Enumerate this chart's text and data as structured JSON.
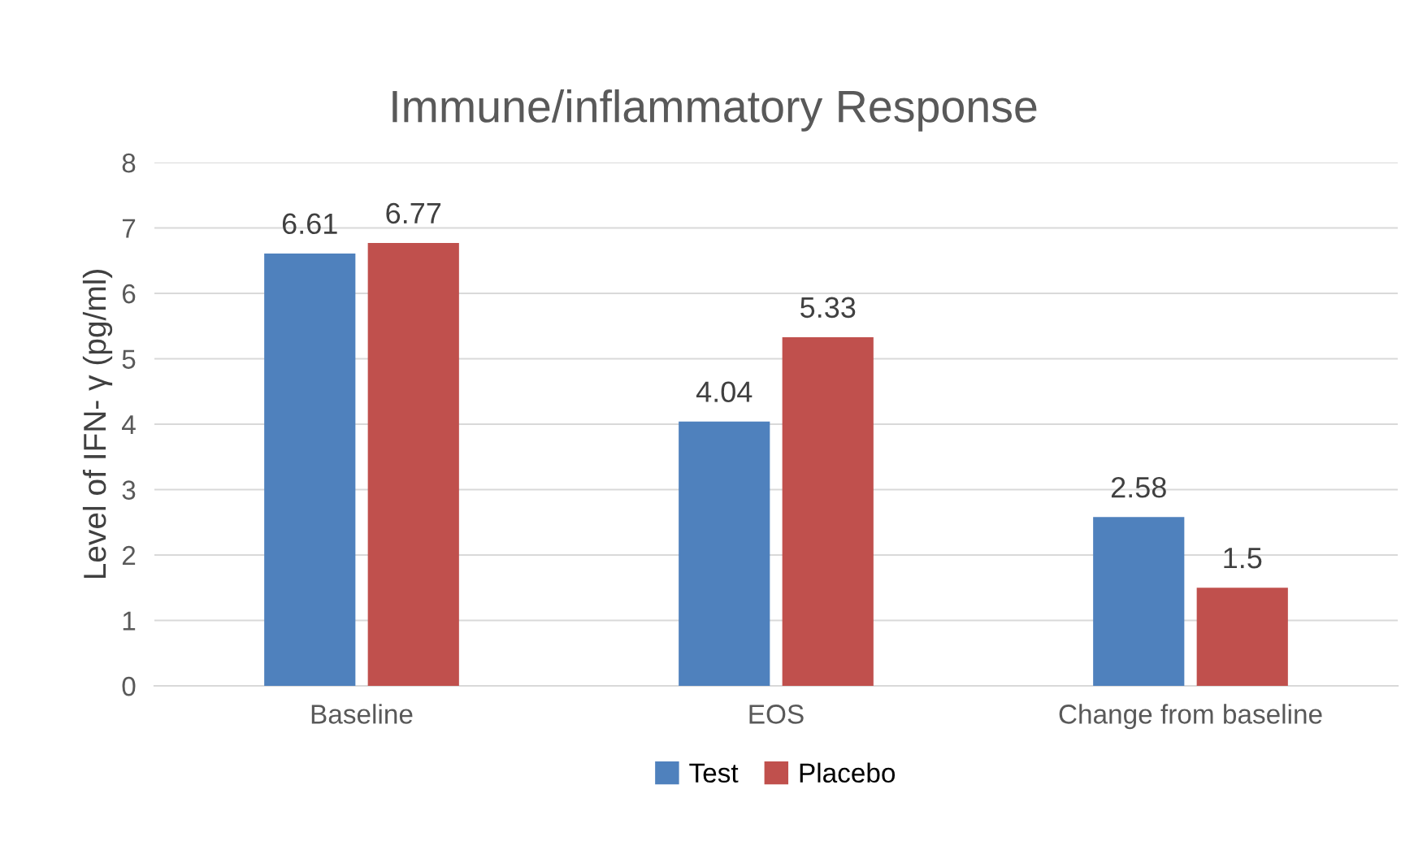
{
  "chart_data": {
    "type": "bar",
    "title": "Immune/inflammatory Response",
    "ylabel": "Level of IFN- γ (pg/ml)",
    "categories": [
      "Baseline",
      "EOS",
      "Change from baseline"
    ],
    "series": [
      {
        "name": "Test",
        "color": "#4f81bd",
        "values": [
          6.61,
          4.04,
          2.58
        ]
      },
      {
        "name": "Placebo",
        "color": "#c0504d",
        "values": [
          6.77,
          5.33,
          1.5
        ]
      }
    ],
    "ylim": [
      0,
      8
    ],
    "yticks": [
      0,
      1,
      2,
      3,
      4,
      5,
      6,
      7,
      8
    ],
    "grid": "y",
    "legend": "bottom",
    "data_labels": true
  }
}
